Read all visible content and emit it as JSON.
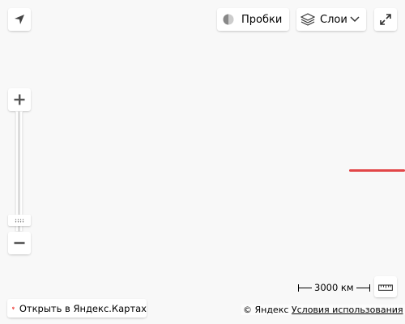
{
  "controls": {
    "traffic_label": "Пробки",
    "layers_label": "Слои"
  },
  "scale": {
    "label": "3000 км"
  },
  "footer": {
    "open_maps_label": "Открыть в Яндекс.Картах",
    "copyright_label": "© Яндекс",
    "terms_label": "Условия использования"
  },
  "colors": {
    "route": "#e24648",
    "pin": "#ee3a35"
  },
  "icons": {
    "geolocation": "arrow-locate-icon",
    "traffic": "traffic-light-icon",
    "layers": "layers-stack-icon",
    "fullscreen": "expand-arrows-icon",
    "zoom_in": "plus-icon",
    "zoom_out": "minus-icon",
    "ruler": "ruler-icon",
    "map_pin": "map-pin-icon"
  }
}
